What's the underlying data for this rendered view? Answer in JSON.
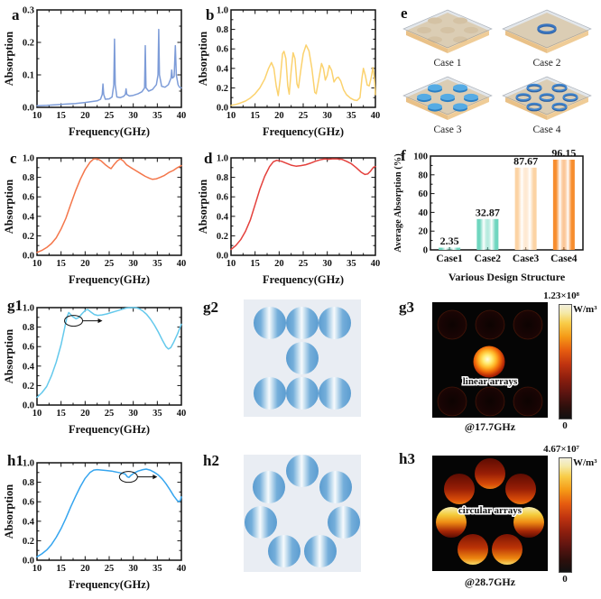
{
  "letters_note": "panel letters are stored with each panel entry",
  "panel_e": {
    "letter": "e",
    "cases": [
      {
        "label": "Case 1"
      },
      {
        "label": "Case 2"
      },
      {
        "label": "Case 3"
      },
      {
        "label": "Case 4"
      }
    ]
  },
  "arrays": {
    "g2": {
      "letter": "g2"
    },
    "h2": {
      "letter": "h2"
    }
  },
  "chart_data": [
    {
      "id": "a",
      "letter": "a",
      "type": "line",
      "color": "#7d9cd8",
      "xlabel": "Frequency(GHz)",
      "ylabel": "Absorption",
      "xlim": [
        10,
        40
      ],
      "ylim": [
        0,
        0.3
      ],
      "xticks": [
        "10",
        "15",
        "20",
        "25",
        "30",
        "35",
        "40"
      ],
      "xminor": [
        12.5,
        17.5,
        22.5,
        27.5,
        32.5,
        37.5
      ],
      "yticks": [
        "0.0",
        "0.1",
        "0.2",
        "0.3"
      ],
      "yminor": [
        0.05,
        0.15,
        0.25
      ],
      "points": [
        [
          10,
          0.005
        ],
        [
          12,
          0.006
        ],
        [
          14,
          0.008
        ],
        [
          16,
          0.01
        ],
        [
          18,
          0.012
        ],
        [
          20,
          0.015
        ],
        [
          21.5,
          0.018
        ],
        [
          22.5,
          0.02
        ],
        [
          23.2,
          0.025
        ],
        [
          23.55,
          0.04
        ],
        [
          23.7,
          0.072
        ],
        [
          23.85,
          0.04
        ],
        [
          24.2,
          0.025
        ],
        [
          25,
          0.026
        ],
        [
          25.6,
          0.032
        ],
        [
          25.95,
          0.07
        ],
        [
          26.1,
          0.21
        ],
        [
          26.25,
          0.07
        ],
        [
          26.6,
          0.032
        ],
        [
          27.3,
          0.03
        ],
        [
          28,
          0.034
        ],
        [
          28.35,
          0.04
        ],
        [
          28.5,
          0.057
        ],
        [
          28.65,
          0.04
        ],
        [
          29.2,
          0.035
        ],
        [
          30,
          0.037
        ],
        [
          31,
          0.042
        ],
        [
          31.8,
          0.048
        ],
        [
          32.35,
          0.06
        ],
        [
          32.5,
          0.19
        ],
        [
          32.65,
          0.06
        ],
        [
          33.2,
          0.05
        ],
        [
          34,
          0.055
        ],
        [
          34.8,
          0.07
        ],
        [
          35.15,
          0.1
        ],
        [
          35.3,
          0.24
        ],
        [
          35.45,
          0.1
        ],
        [
          35.9,
          0.065
        ],
        [
          36.6,
          0.062
        ],
        [
          37.3,
          0.07
        ],
        [
          37.85,
          0.09
        ],
        [
          38,
          0.115
        ],
        [
          38.15,
          0.09
        ],
        [
          38.5,
          0.095
        ],
        [
          38.75,
          0.19
        ],
        [
          38.95,
          0.1
        ],
        [
          39.3,
          0.07
        ],
        [
          39.6,
          0.062
        ],
        [
          40,
          0.06
        ]
      ]
    },
    {
      "id": "b",
      "letter": "b",
      "type": "line",
      "color": "#fbd26e",
      "xlabel": "Frequency(GHz)",
      "ylabel": "Absorption",
      "xlim": [
        10,
        40
      ],
      "ylim": [
        0,
        1.0
      ],
      "xticks": [
        "10",
        "15",
        "20",
        "25",
        "30",
        "35",
        "40"
      ],
      "xminor": [
        12.5,
        17.5,
        22.5,
        27.5,
        32.5,
        37.5
      ],
      "yticks": [
        "0.0",
        "0.2",
        "0.4",
        "0.6",
        "0.8",
        "1.0"
      ],
      "yminor": [
        0.1,
        0.3,
        0.5,
        0.7,
        0.9
      ],
      "points": [
        [
          10,
          0.02
        ],
        [
          11,
          0.03
        ],
        [
          12,
          0.045
        ],
        [
          13,
          0.065
        ],
        [
          14,
          0.095
        ],
        [
          15,
          0.14
        ],
        [
          16,
          0.2
        ],
        [
          17,
          0.29
        ],
        [
          17.8,
          0.4
        ],
        [
          18.4,
          0.46
        ],
        [
          18.9,
          0.4
        ],
        [
          19.4,
          0.22
        ],
        [
          19.8,
          0.12
        ],
        [
          20.2,
          0.28
        ],
        [
          20.7,
          0.55
        ],
        [
          21,
          0.575
        ],
        [
          21.4,
          0.5
        ],
        [
          21.8,
          0.22
        ],
        [
          22.1,
          0.135
        ],
        [
          22.5,
          0.38
        ],
        [
          22.9,
          0.56
        ],
        [
          23.3,
          0.5
        ],
        [
          23.7,
          0.24
        ],
        [
          24,
          0.2
        ],
        [
          24.5,
          0.38
        ],
        [
          25,
          0.55
        ],
        [
          25.6,
          0.64
        ],
        [
          26.2,
          0.58
        ],
        [
          26.8,
          0.4
        ],
        [
          27.4,
          0.155
        ],
        [
          27.7,
          0.14
        ],
        [
          28.2,
          0.28
        ],
        [
          28.8,
          0.45
        ],
        [
          29.2,
          0.4
        ],
        [
          29.6,
          0.28
        ],
        [
          30,
          0.33
        ],
        [
          30.4,
          0.43
        ],
        [
          30.9,
          0.38
        ],
        [
          31.4,
          0.26
        ],
        [
          31.9,
          0.3
        ],
        [
          32.3,
          0.31
        ],
        [
          32.8,
          0.27
        ],
        [
          33.4,
          0.18
        ],
        [
          34,
          0.13
        ],
        [
          34.8,
          0.095
        ],
        [
          35.6,
          0.075
        ],
        [
          36.2,
          0.07
        ],
        [
          36.8,
          0.1
        ],
        [
          37.2,
          0.3
        ],
        [
          37.5,
          0.4
        ],
        [
          37.9,
          0.33
        ],
        [
          38.3,
          0.23
        ],
        [
          38.7,
          0.22
        ],
        [
          39.1,
          0.3
        ],
        [
          39.5,
          0.41
        ],
        [
          39.8,
          0.3
        ],
        [
          40,
          0.13
        ]
      ]
    },
    {
      "id": "c",
      "letter": "c",
      "type": "line",
      "color": "#f4764a",
      "xlabel": "Frequency(GHz)",
      "ylabel": "Absorption",
      "xlim": [
        10,
        40
      ],
      "ylim": [
        0,
        1.0
      ],
      "xticks": [
        "10",
        "15",
        "20",
        "25",
        "30",
        "35",
        "40"
      ],
      "xminor": [
        12.5,
        17.5,
        22.5,
        27.5,
        32.5,
        37.5
      ],
      "yticks": [
        "0.0",
        "0.2",
        "0.4",
        "0.6",
        "0.8",
        "1.0"
      ],
      "yminor": [
        0.1,
        0.3,
        0.5,
        0.7,
        0.9
      ],
      "points": [
        [
          10,
          0.03
        ],
        [
          11,
          0.05
        ],
        [
          12,
          0.08
        ],
        [
          13,
          0.12
        ],
        [
          14,
          0.18
        ],
        [
          15,
          0.27
        ],
        [
          16,
          0.38
        ],
        [
          17,
          0.52
        ],
        [
          18,
          0.66
        ],
        [
          19,
          0.78
        ],
        [
          20,
          0.88
        ],
        [
          21,
          0.955
        ],
        [
          21.8,
          0.99
        ],
        [
          22.5,
          0.99
        ],
        [
          23.3,
          0.97
        ],
        [
          24.2,
          0.93
        ],
        [
          25,
          0.9
        ],
        [
          25.4,
          0.89
        ],
        [
          26,
          0.93
        ],
        [
          26.7,
          0.97
        ],
        [
          27.3,
          0.99
        ],
        [
          27.9,
          0.97
        ],
        [
          28.6,
          0.93
        ],
        [
          29.5,
          0.9
        ],
        [
          30.5,
          0.87
        ],
        [
          31.5,
          0.84
        ],
        [
          32.5,
          0.81
        ],
        [
          33.4,
          0.79
        ],
        [
          34,
          0.78
        ],
        [
          34.8,
          0.785
        ],
        [
          35.6,
          0.8
        ],
        [
          36.5,
          0.82
        ],
        [
          37.4,
          0.85
        ],
        [
          38.3,
          0.87
        ],
        [
          39.2,
          0.9
        ],
        [
          40,
          0.92
        ]
      ]
    },
    {
      "id": "d",
      "letter": "d",
      "type": "line",
      "color": "#e4403c",
      "xlabel": "Frequency(GHz)",
      "ylabel": "Absorption",
      "xlim": [
        10,
        40
      ],
      "ylim": [
        0,
        1.0
      ],
      "xticks": [
        "10",
        "15",
        "20",
        "25",
        "30",
        "35",
        "40"
      ],
      "xminor": [
        12.5,
        17.5,
        22.5,
        27.5,
        32.5,
        37.5
      ],
      "yticks": [
        "0.0",
        "0.2",
        "0.4",
        "0.6",
        "0.8",
        "1.0"
      ],
      "yminor": [
        0.1,
        0.3,
        0.5,
        0.7,
        0.9
      ],
      "points": [
        [
          10,
          0.06
        ],
        [
          11,
          0.1
        ],
        [
          12,
          0.16
        ],
        [
          13,
          0.245
        ],
        [
          14,
          0.36
        ],
        [
          15,
          0.52
        ],
        [
          16,
          0.68
        ],
        [
          17,
          0.81
        ],
        [
          18,
          0.91
        ],
        [
          18.8,
          0.96
        ],
        [
          19.5,
          0.975
        ],
        [
          20.5,
          0.965
        ],
        [
          21.5,
          0.945
        ],
        [
          22.5,
          0.925
        ],
        [
          23.5,
          0.915
        ],
        [
          24.5,
          0.92
        ],
        [
          25.5,
          0.93
        ],
        [
          26.5,
          0.945
        ],
        [
          27.5,
          0.965
        ],
        [
          28.5,
          0.98
        ],
        [
          29.5,
          0.99
        ],
        [
          30.2,
          0.985
        ],
        [
          31,
          0.99
        ],
        [
          32,
          0.99
        ],
        [
          33,
          0.985
        ],
        [
          34,
          0.965
        ],
        [
          35,
          0.94
        ],
        [
          36,
          0.9
        ],
        [
          37,
          0.855
        ],
        [
          37.8,
          0.83
        ],
        [
          38.4,
          0.835
        ],
        [
          39,
          0.865
        ],
        [
          39.6,
          0.905
        ],
        [
          40,
          0.91
        ]
      ]
    },
    {
      "id": "f",
      "letter": "f",
      "type": "bar",
      "xlabel": "Various Design Structure",
      "ylabel": "Average Absorption (%)",
      "ylim": [
        0,
        100
      ],
      "yticks": [
        "0",
        "20",
        "40",
        "60",
        "80",
        "100"
      ],
      "yminor": [
        10,
        30,
        50,
        70,
        90
      ],
      "categories": [
        "Case1",
        "Case2",
        "Case3",
        "Case4"
      ],
      "values": [
        2.35,
        32.87,
        87.67,
        96.15
      ],
      "value_labels": [
        "2.35",
        "32.87",
        "87.67",
        "96.15"
      ],
      "bar_colors": [
        "#6fd6bf",
        "#6fd6bf",
        "#fcd3a4",
        "#f78d2e"
      ]
    },
    {
      "id": "g1",
      "letter": "g1",
      "type": "line",
      "color": "#64c9ec",
      "xlabel": "Frequency(GHz)",
      "ylabel": "Absorption",
      "xlim": [
        10,
        40
      ],
      "ylim": [
        0,
        1.0
      ],
      "xticks": [
        "10",
        "15",
        "20",
        "25",
        "30",
        "35",
        "40"
      ],
      "xminor": [
        12.5,
        17.5,
        22.5,
        27.5,
        32.5,
        37.5
      ],
      "yticks": [
        "0.0",
        "0.2",
        "0.4",
        "0.6",
        "0.8",
        "1.0"
      ],
      "yminor": [
        0.1,
        0.3,
        0.5,
        0.7,
        0.9
      ],
      "annotation": {
        "x": 17.6,
        "y": 0.865,
        "len": 22
      },
      "points": [
        [
          10,
          0.08
        ],
        [
          11,
          0.125
        ],
        [
          12,
          0.19
        ],
        [
          13,
          0.3
        ],
        [
          14,
          0.44
        ],
        [
          15,
          0.62
        ],
        [
          15.7,
          0.78
        ],
        [
          16.2,
          0.9
        ],
        [
          16.6,
          0.95
        ],
        [
          17,
          0.93
        ],
        [
          17.5,
          0.905
        ],
        [
          18.1,
          0.885
        ],
        [
          18.7,
          0.9
        ],
        [
          19.4,
          0.94
        ],
        [
          20.1,
          0.975
        ],
        [
          20.6,
          0.98
        ],
        [
          21.2,
          0.955
        ],
        [
          21.9,
          0.93
        ],
        [
          22.6,
          0.92
        ],
        [
          23.5,
          0.925
        ],
        [
          24.5,
          0.935
        ],
        [
          25.5,
          0.95
        ],
        [
          26.5,
          0.965
        ],
        [
          27.5,
          0.98
        ],
        [
          28.5,
          0.995
        ],
        [
          29.5,
          1.0
        ],
        [
          30.5,
          1.0
        ],
        [
          31.2,
          0.99
        ],
        [
          32,
          0.965
        ],
        [
          32.8,
          0.93
        ],
        [
          33.6,
          0.88
        ],
        [
          34.4,
          0.82
        ],
        [
          35.2,
          0.75
        ],
        [
          36,
          0.67
        ],
        [
          36.8,
          0.6
        ],
        [
          37.3,
          0.575
        ],
        [
          37.8,
          0.59
        ],
        [
          38.4,
          0.645
        ],
        [
          39.2,
          0.73
        ],
        [
          40,
          0.83
        ]
      ]
    },
    {
      "id": "g3",
      "letter": "g3",
      "type": "heatmap",
      "label": "linear arrays",
      "caption": "@17.7GHz",
      "cbar_max": "1.23×10⁸",
      "cbar_unit": "W/m³",
      "cbar_min": "0"
    },
    {
      "id": "h1",
      "letter": "h1",
      "type": "line",
      "color": "#35a5ef",
      "xlabel": "Frequency(GHz)",
      "ylabel": "Absorption",
      "xlim": [
        10,
        40
      ],
      "ylim": [
        0,
        1.0
      ],
      "xticks": [
        "10",
        "15",
        "20",
        "25",
        "30",
        "35",
        "40"
      ],
      "xminor": [
        12.5,
        17.5,
        22.5,
        27.5,
        32.5,
        37.5
      ],
      "yticks": [
        "0.0",
        "0.2",
        "0.4",
        "0.6",
        "0.8",
        "1.0"
      ],
      "yminor": [
        0.1,
        0.3,
        0.5,
        0.7,
        0.9
      ],
      "annotation": {
        "x": 29.0,
        "y": 0.855,
        "len": 22
      },
      "points": [
        [
          10,
          0.035
        ],
        [
          11,
          0.065
        ],
        [
          12,
          0.105
        ],
        [
          13,
          0.16
        ],
        [
          14,
          0.235
        ],
        [
          15,
          0.325
        ],
        [
          16,
          0.43
        ],
        [
          17,
          0.545
        ],
        [
          18,
          0.655
        ],
        [
          19,
          0.755
        ],
        [
          20,
          0.84
        ],
        [
          21,
          0.9
        ],
        [
          21.8,
          0.925
        ],
        [
          22.5,
          0.93
        ],
        [
          23.5,
          0.925
        ],
        [
          24.5,
          0.92
        ],
        [
          25.5,
          0.915
        ],
        [
          26.5,
          0.905
        ],
        [
          27.5,
          0.895
        ],
        [
          28.3,
          0.885
        ],
        [
          28.8,
          0.855
        ],
        [
          29.1,
          0.85
        ],
        [
          29.5,
          0.87
        ],
        [
          30.2,
          0.895
        ],
        [
          31,
          0.915
        ],
        [
          32,
          0.93
        ],
        [
          32.7,
          0.935
        ],
        [
          33.5,
          0.925
        ],
        [
          34.3,
          0.905
        ],
        [
          35.2,
          0.875
        ],
        [
          36,
          0.835
        ],
        [
          36.8,
          0.785
        ],
        [
          37.6,
          0.725
        ],
        [
          38.4,
          0.66
        ],
        [
          39.1,
          0.615
        ],
        [
          39.5,
          0.6
        ],
        [
          39.8,
          0.615
        ],
        [
          40,
          0.65
        ]
      ]
    },
    {
      "id": "h3",
      "letter": "h3",
      "type": "heatmap",
      "label": "circular arrays",
      "caption": "@28.7GHz",
      "cbar_max": "4.67×10⁷",
      "cbar_unit": "W/m³",
      "cbar_min": "0"
    }
  ]
}
